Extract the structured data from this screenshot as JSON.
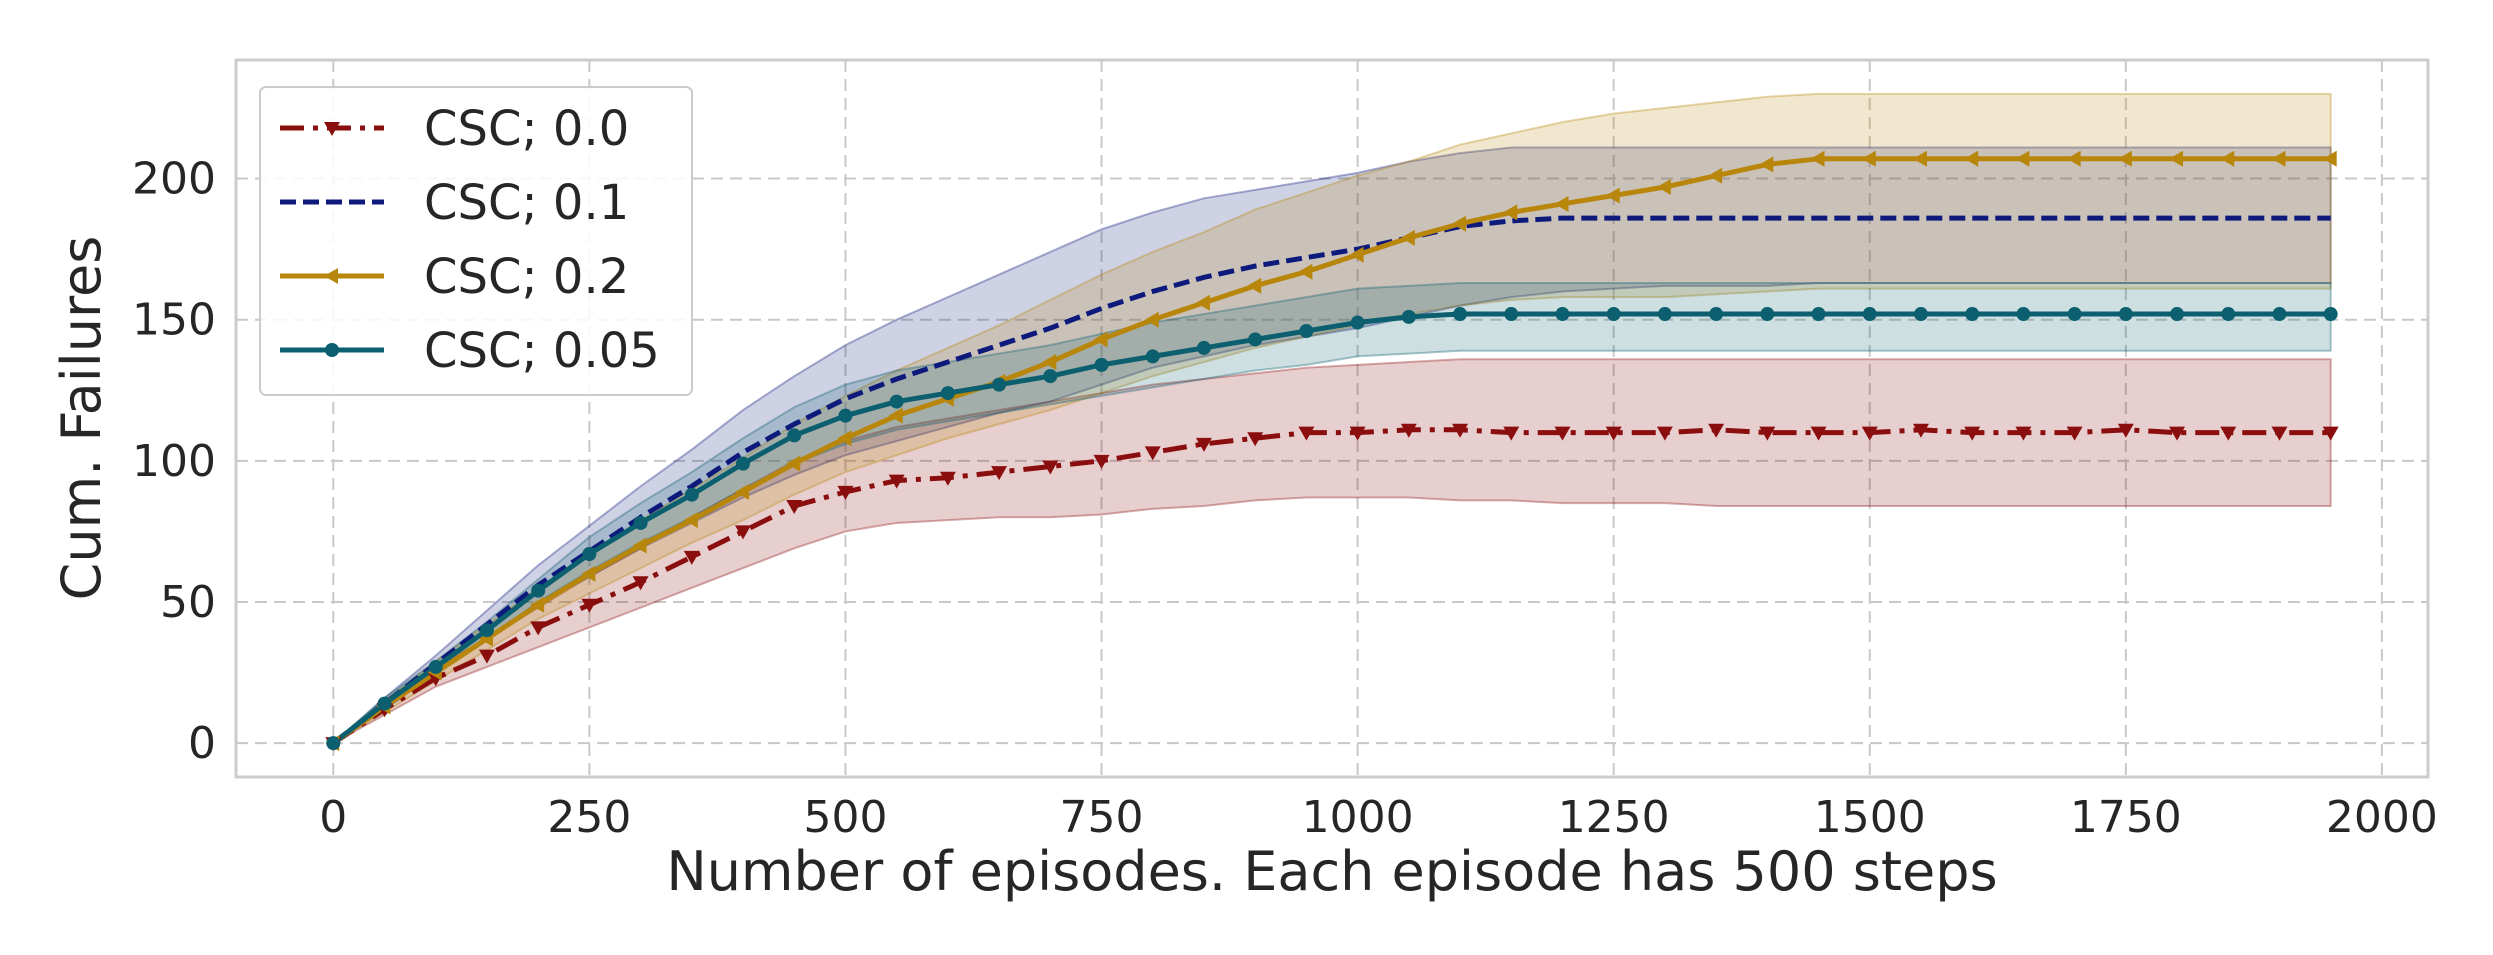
{
  "chart_data": {
    "type": "line",
    "title": "",
    "xlabel": "Number of episodes. Each episode has 500 steps",
    "ylabel": "Cum. Failures",
    "xlim": [
      -95,
      2045
    ],
    "ylim": [
      -12,
      242
    ],
    "xticks": [
      0,
      250,
      500,
      750,
      1000,
      1250,
      1500,
      1750,
      2000
    ],
    "yticks": [
      0,
      50,
      100,
      150,
      200
    ],
    "xtick_labels": [
      "0",
      "250",
      "500",
      "750",
      "1000",
      "1250",
      "1500",
      "1750",
      "2000"
    ],
    "ytick_labels": [
      "0",
      "50",
      "100",
      "150",
      "200"
    ],
    "grid": true,
    "legend_position": "top-left",
    "x": [
      0,
      50,
      100,
      150,
      200,
      250,
      300,
      350,
      400,
      450,
      500,
      550,
      600,
      650,
      700,
      750,
      800,
      850,
      900,
      950,
      1000,
      1050,
      1100,
      1150,
      1200,
      1250,
      1300,
      1350,
      1400,
      1450,
      1500,
      1550,
      1600,
      1650,
      1700,
      1750,
      1800,
      1850,
      1900,
      1950
    ],
    "series": [
      {
        "name": "CSC; 0.0",
        "color": "#8b0e0e",
        "dash": "dashdot",
        "marker": "triangle-down",
        "values": [
          0,
          12,
          23,
          31,
          41,
          49,
          57,
          66,
          75,
          84,
          89,
          93,
          94,
          96,
          98,
          100,
          103,
          106,
          108,
          110,
          110,
          111,
          111,
          110,
          110,
          110,
          110,
          111,
          110,
          110,
          110,
          111,
          110,
          110,
          110,
          111,
          110,
          110,
          110,
          110
        ],
        "lower": [
          0,
          10,
          20,
          27,
          34,
          41,
          48,
          55,
          62,
          69,
          75,
          78,
          79,
          80,
          80,
          81,
          83,
          84,
          86,
          87,
          87,
          87,
          86,
          86,
          85,
          85,
          85,
          84,
          84,
          84,
          84,
          84,
          84,
          84,
          84,
          84,
          84,
          84,
          84,
          84
        ],
        "upper": [
          0,
          15,
          27,
          37,
          48,
          59,
          69,
          80,
          90,
          100,
          107,
          112,
          115,
          118,
          121,
          124,
          127,
          129,
          131,
          133,
          134,
          135,
          136,
          136,
          136,
          136,
          136,
          136,
          136,
          136,
          136,
          136,
          136,
          136,
          136,
          136,
          136,
          136,
          136,
          136
        ]
      },
      {
        "name": "CSC; 0.1",
        "color": "#0d1a7c",
        "dash": "dashed",
        "marker": "none",
        "values": [
          0,
          14,
          28,
          42,
          56,
          68,
          80,
          91,
          103,
          113,
          122,
          129,
          135,
          141,
          147,
          154,
          160,
          165,
          169,
          172,
          175,
          179,
          183,
          185,
          186,
          186,
          186,
          186,
          186,
          186,
          186,
          186,
          186,
          186,
          186,
          186,
          186,
          186,
          186,
          186
        ],
        "lower": [
          0,
          12,
          25,
          37,
          49,
          59,
          69,
          78,
          87,
          95,
          102,
          107,
          112,
          117,
          121,
          127,
          133,
          137,
          141,
          144,
          147,
          151,
          155,
          158,
          160,
          161,
          162,
          162,
          162,
          163,
          163,
          163,
          163,
          163,
          163,
          163,
          163,
          163,
          163,
          163
        ],
        "upper": [
          0,
          16,
          31,
          47,
          63,
          77,
          91,
          104,
          118,
          130,
          141,
          150,
          158,
          166,
          174,
          182,
          188,
          193,
          196,
          199,
          202,
          206,
          209,
          211,
          211,
          211,
          211,
          211,
          211,
          211,
          211,
          211,
          211,
          211,
          211,
          211,
          211,
          211,
          211,
          211
        ]
      },
      {
        "name": "CSC; 0.2",
        "color": "#b8860b",
        "dash": "solid",
        "marker": "triangle-left",
        "values": [
          0,
          13,
          25,
          37,
          49,
          60,
          70,
          79,
          89,
          99,
          108,
          116,
          122,
          128,
          135,
          143,
          150,
          156,
          162,
          167,
          173,
          179,
          184,
          188,
          191,
          194,
          197,
          201,
          205,
          207,
          207,
          207,
          207,
          207,
          207,
          207,
          207,
          207,
          207,
          207
        ],
        "lower": [
          0,
          11,
          22,
          33,
          44,
          53,
          62,
          71,
          79,
          88,
          96,
          102,
          108,
          113,
          118,
          124,
          130,
          135,
          140,
          144,
          148,
          152,
          155,
          157,
          158,
          158,
          158,
          159,
          160,
          161,
          161,
          161,
          161,
          161,
          161,
          161,
          161,
          161,
          161,
          161
        ],
        "upper": [
          0,
          15,
          29,
          42,
          55,
          67,
          79,
          90,
          101,
          113,
          123,
          132,
          140,
          148,
          157,
          166,
          174,
          181,
          189,
          195,
          201,
          206,
          212,
          216,
          220,
          223,
          225,
          227,
          229,
          230,
          230,
          230,
          230,
          230,
          230,
          230,
          230,
          230,
          230,
          230
        ]
      },
      {
        "name": "CSC; 0.05",
        "color": "#0b5f6e",
        "dash": "solid",
        "marker": "circle",
        "values": [
          0,
          14,
          27,
          40,
          54,
          67,
          78,
          88,
          99,
          109,
          116,
          121,
          124,
          127,
          130,
          134,
          137,
          140,
          143,
          146,
          149,
          151,
          152,
          152,
          152,
          152,
          152,
          152,
          152,
          152,
          152,
          152,
          152,
          152,
          152,
          152,
          152,
          152,
          152,
          152
        ],
        "lower": [
          0,
          12,
          25,
          37,
          50,
          61,
          71,
          80,
          90,
          99,
          106,
          111,
          114,
          117,
          120,
          123,
          126,
          129,
          132,
          134,
          137,
          138,
          139,
          139,
          139,
          139,
          139,
          139,
          139,
          139,
          139,
          139,
          139,
          139,
          139,
          139,
          139,
          139,
          139,
          139
        ],
        "upper": [
          0,
          16,
          29,
          43,
          58,
          73,
          85,
          96,
          108,
          119,
          127,
          132,
          135,
          138,
          141,
          145,
          149,
          152,
          155,
          158,
          161,
          162,
          163,
          163,
          163,
          163,
          163,
          163,
          163,
          163,
          163,
          163,
          163,
          163,
          163,
          163,
          163,
          163,
          163,
          163
        ]
      }
    ]
  }
}
